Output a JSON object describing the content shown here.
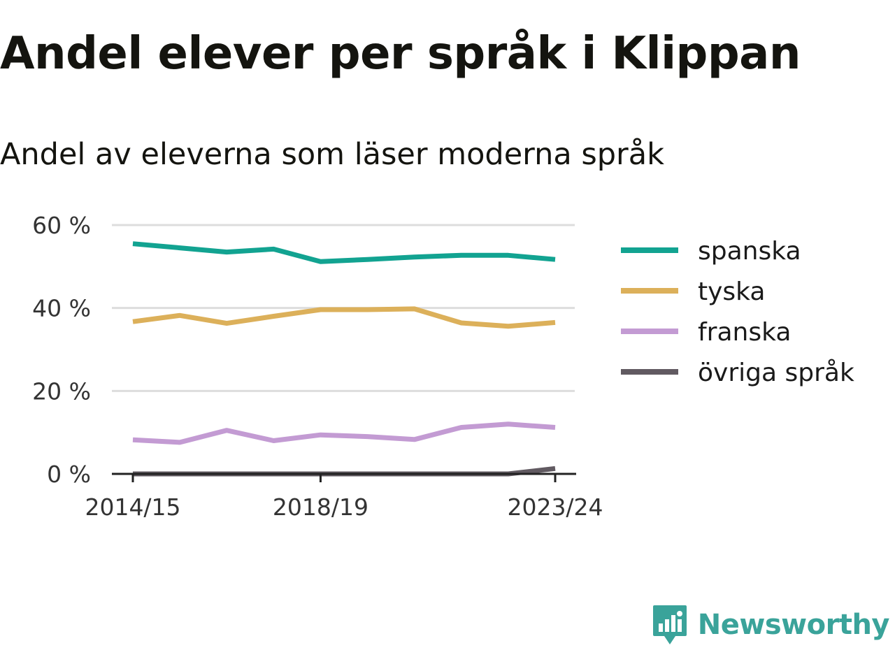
{
  "title": "Andel elever per språk i Klippan",
  "subtitle": "Andel av eleverna som läser moderna språk",
  "brand": {
    "name": "Newsworthy",
    "color": "#3aa39a",
    "icon": "newsworthy-logo-icon"
  },
  "colors": {
    "grid": "#dddddd",
    "axis": "#222222"
  },
  "chart_data": {
    "type": "line",
    "x": [
      "2014/15",
      "2015/16",
      "2016/17",
      "2017/18",
      "2018/19",
      "2019/20",
      "2020/21",
      "2021/22",
      "2022/23",
      "2023/24"
    ],
    "x_tick_labels": [
      "2014/15",
      "2018/19",
      "2023/24"
    ],
    "y_ticks": [
      {
        "value": 0,
        "label": "0 %"
      },
      {
        "value": 20,
        "label": "20 %"
      },
      {
        "value": 40,
        "label": "40 %"
      },
      {
        "value": 60,
        "label": "60 %"
      }
    ],
    "ylim": [
      0,
      60
    ],
    "grid": true,
    "legend_position": "right",
    "series": [
      {
        "name": "spanska",
        "color": "#12a391",
        "values": [
          55.5,
          54.5,
          53.5,
          54.2,
          51.2,
          51.7,
          52.3,
          52.7,
          52.7,
          51.7
        ]
      },
      {
        "name": "tyska",
        "color": "#dcb05a",
        "values": [
          36.7,
          38.2,
          36.3,
          38.0,
          39.6,
          39.6,
          39.8,
          36.4,
          35.6,
          36.5
        ]
      },
      {
        "name": "franska",
        "color": "#c39bd3",
        "values": [
          8.2,
          7.6,
          10.5,
          8.0,
          9.4,
          9.0,
          8.3,
          11.2,
          12.0,
          11.2
        ]
      },
      {
        "name": "övriga språk",
        "color": "#615a61",
        "values": [
          0,
          0,
          0,
          0,
          0,
          0,
          0,
          0,
          0,
          1.3
        ]
      }
    ]
  }
}
